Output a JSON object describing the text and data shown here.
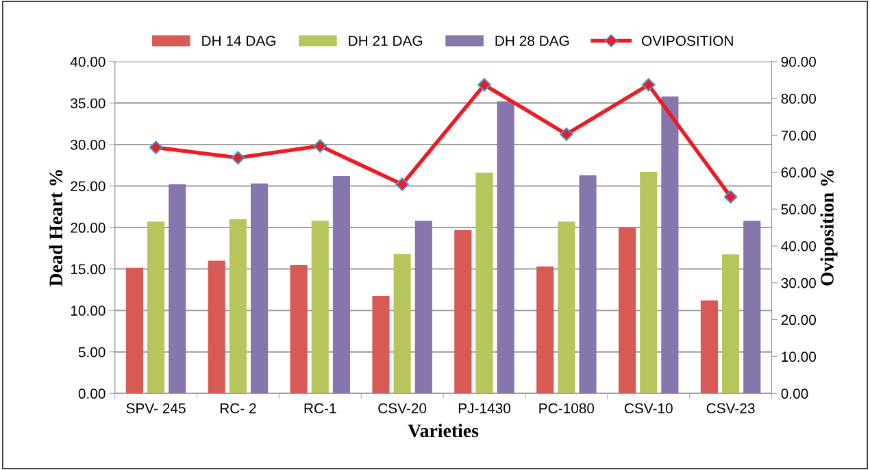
{
  "chart_data": {
    "type": "bar",
    "categories": [
      "SPV- 245",
      "RC- 2",
      "RC-1",
      "CSV-20",
      "PJ-1430",
      "PC-1080",
      "CSV-10",
      "CSV-23"
    ],
    "series": [
      {
        "name": "DH 14 DAG",
        "color": "#d85a55",
        "values": [
          15.15,
          16.0,
          15.45,
          11.75,
          19.7,
          15.3,
          20.0,
          11.2
        ]
      },
      {
        "name": "DH 21 DAG",
        "color": "#b8c55c",
        "values": [
          20.7,
          21.0,
          20.8,
          16.8,
          26.6,
          20.7,
          26.7,
          16.75
        ]
      },
      {
        "name": "DH 28 DAG",
        "color": "#8775ae",
        "values": [
          25.2,
          25.3,
          26.2,
          20.8,
          35.2,
          26.3,
          35.8,
          20.8
        ]
      },
      {
        "name": "OVIPOSITION",
        "type": "line",
        "axis": "y2",
        "color": "#ed1c24",
        "marker": "diamond",
        "values": [
          66.7,
          63.9,
          67.1,
          56.7,
          83.7,
          70.3,
          83.7,
          53.3
        ]
      }
    ],
    "xlabel": "Varieties",
    "ylabel": "Dead Heart %",
    "y2label": "Oviposition %",
    "ylim": [
      0,
      40
    ],
    "yticks": [
      {
        "value": 0,
        "label": "0.00"
      },
      {
        "value": 5,
        "label": "5.00"
      },
      {
        "value": 10,
        "label": "10.00"
      },
      {
        "value": 15,
        "label": "15.00"
      },
      {
        "value": 20,
        "label": "20.00"
      },
      {
        "value": 25,
        "label": "25.00"
      },
      {
        "value": 30,
        "label": "30.00"
      },
      {
        "value": 35,
        "label": "35.00"
      },
      {
        "value": 40,
        "label": "40.00"
      }
    ],
    "y2lim": [
      0,
      90
    ],
    "y2ticks": [
      {
        "value": 0,
        "label": "0.00"
      },
      {
        "value": 10,
        "label": "10.00"
      },
      {
        "value": 20,
        "label": "20.00"
      },
      {
        "value": 30,
        "label": "30.00"
      },
      {
        "value": 40,
        "label": "40.00"
      },
      {
        "value": 50,
        "label": "50.00"
      },
      {
        "value": 60,
        "label": "60.00"
      },
      {
        "value": 70,
        "label": "70.00"
      },
      {
        "value": 80,
        "label": "80.00"
      },
      {
        "value": 90,
        "label": "90.00"
      }
    ],
    "grid": "y",
    "legend": "top"
  }
}
